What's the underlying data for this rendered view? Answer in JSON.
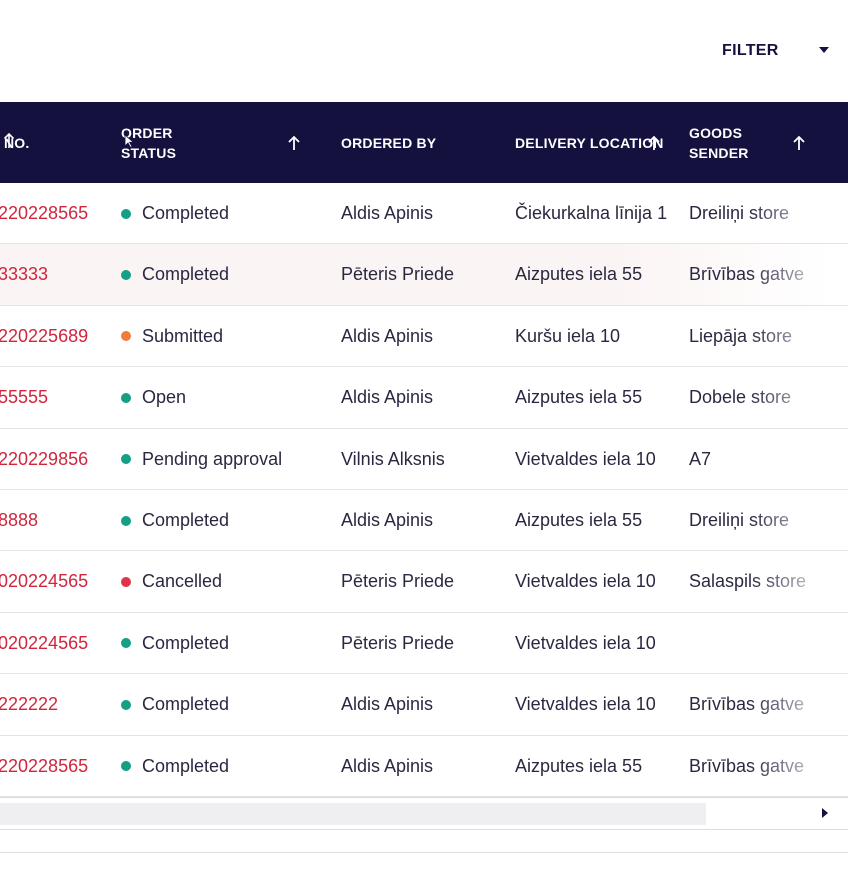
{
  "toolbar": {
    "filter_label": "FILTER",
    "filter_icon": "chevron-down-icon"
  },
  "table": {
    "headers": {
      "order_no": "NO.",
      "order_status": "ORDER STATUS",
      "ordered_by": "ORDERED BY",
      "delivery_location": "DELIVERY LOCATION",
      "goods_sender": "GOODS SENDER"
    },
    "sort_icon": "arrow-up-icon",
    "status_colors": {
      "Completed": "#13a085",
      "Open": "#13a085",
      "Pending approval": "#13a085",
      "Submitted": "#ef7d3b",
      "Cancelled": "#df3348"
    },
    "rows": [
      {
        "order_no": "220228565",
        "status": "Completed",
        "ordered_by": "Aldis Apinis",
        "location": "Čiekurkalna līnija 1",
        "sender": "Dreiliņi store"
      },
      {
        "order_no": "33333",
        "status": "Completed",
        "ordered_by": "Pēteris Priede",
        "location": "Aizputes iela 55",
        "sender": "Brīvības gatve"
      },
      {
        "order_no": "220225689",
        "status": "Submitted",
        "ordered_by": "Aldis Apinis",
        "location": "Kuršu iela 10",
        "sender": "Liepāja store"
      },
      {
        "order_no": "55555",
        "status": "Open",
        "ordered_by": "Aldis Apinis",
        "location": "Aizputes iela 55",
        "sender": "Dobele store"
      },
      {
        "order_no": "220229856",
        "status": "Pending approval",
        "ordered_by": "Vilnis Alksnis",
        "location": "Vietvaldes iela 10",
        "sender": "A7"
      },
      {
        "order_no": "8888",
        "status": "Completed",
        "ordered_by": "Aldis Apinis",
        "location": "Aizputes iela 55",
        "sender": "Dreiliņi store"
      },
      {
        "order_no": "020224565",
        "status": "Cancelled",
        "ordered_by": "Pēteris Priede",
        "location": "Vietvaldes iela 10",
        "sender": "Salaspils store"
      },
      {
        "order_no": "020224565",
        "status": "Completed",
        "ordered_by": "Pēteris Priede",
        "location": "Vietvaldes iela 10",
        "sender": ""
      },
      {
        "order_no": "222222",
        "status": "Completed",
        "ordered_by": "Aldis Apinis",
        "location": "Vietvaldes iela 10",
        "sender": "Brīvības gatve"
      },
      {
        "order_no": "220228565",
        "status": "Completed",
        "ordered_by": "Aldis Apinis",
        "location": "Aizputes iela 55",
        "sender": "Brīvības gatve"
      }
    ]
  },
  "scrollbar": {
    "right_icon": "arrow-right-icon"
  }
}
